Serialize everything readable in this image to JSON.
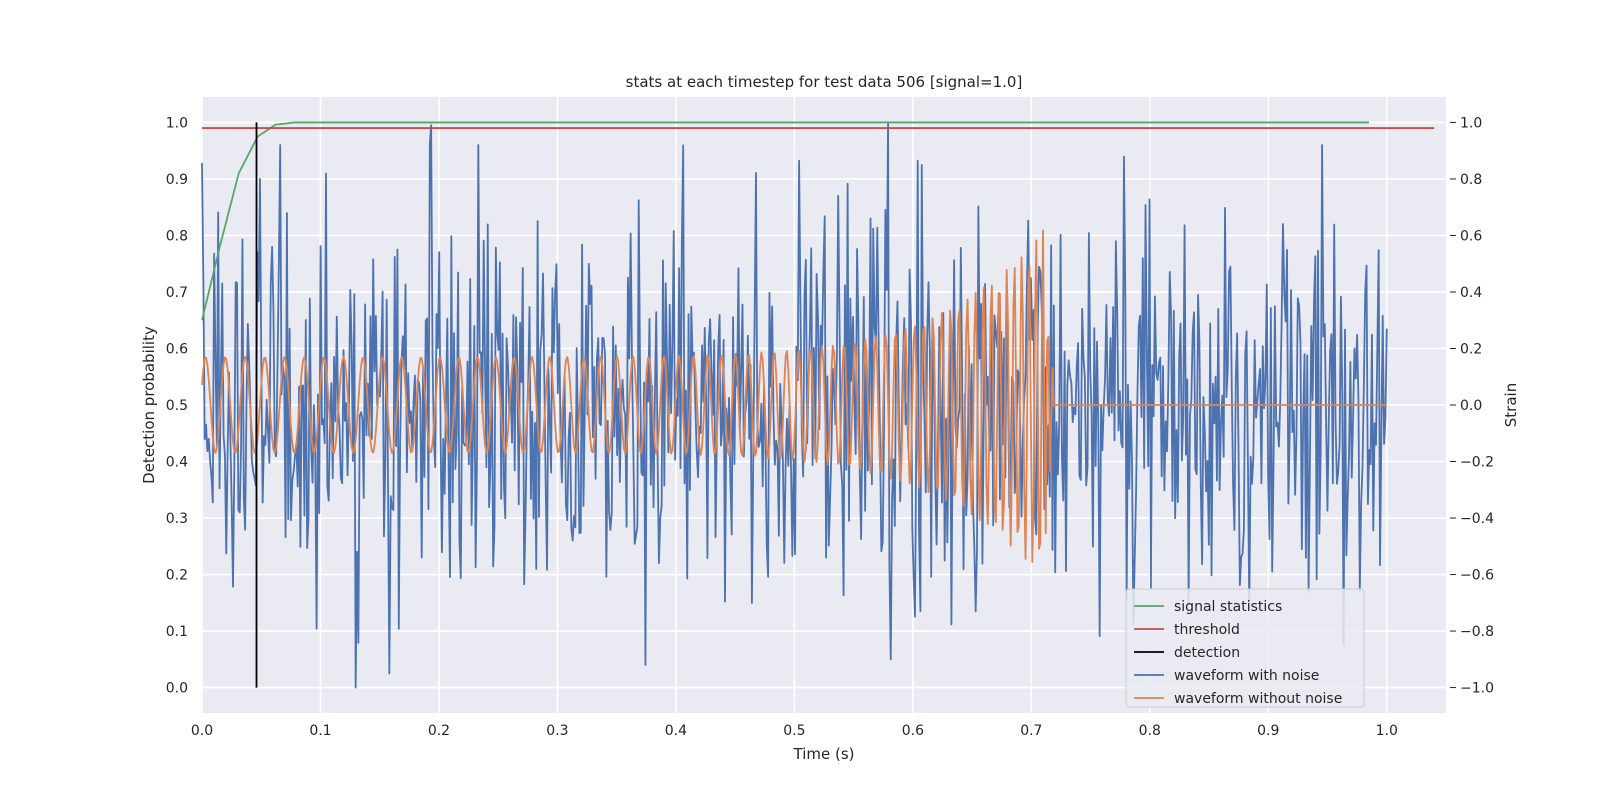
{
  "chart_data": {
    "type": "line",
    "title": "stats at each timestep for test data 506 [signal=1.0]",
    "xlabel": "Time (s)",
    "ylabel": "Detection probability",
    "y2label": "Strain",
    "xlim": [
      0.0,
      1.05
    ],
    "ylim": [
      -0.045,
      1.045
    ],
    "y2lim": [
      -1.09,
      1.09
    ],
    "xticks": [
      "0.0",
      "0.1",
      "0.2",
      "0.3",
      "0.4",
      "0.5",
      "0.6",
      "0.7",
      "0.8",
      "0.9",
      "1.0"
    ],
    "yticks": [
      "0.0",
      "0.1",
      "0.2",
      "0.3",
      "0.4",
      "0.5",
      "0.6",
      "0.7",
      "0.8",
      "0.9",
      "1.0"
    ],
    "y2ticks": [
      "−1.0",
      "−0.8",
      "−0.6",
      "−0.4",
      "−0.2",
      "0.0",
      "0.2",
      "0.4",
      "0.6",
      "0.8",
      "1.0"
    ],
    "grid": true,
    "legend_position": "lower right",
    "background": "#eaeaf2",
    "series": [
      {
        "name": "signal statistics",
        "axis": "left",
        "color": "#55a868",
        "x": [
          0.0,
          0.015,
          0.031,
          0.047,
          0.062,
          0.078,
          0.1,
          0.2,
          0.4,
          0.6,
          0.8,
          0.985
        ],
        "y": [
          0.65,
          0.78,
          0.91,
          0.975,
          0.996,
          1.0,
          1.0,
          1.0,
          1.0,
          1.0,
          1.0,
          1.0
        ]
      },
      {
        "name": "threshold",
        "axis": "left",
        "color": "#c44e52",
        "x": [
          0.0,
          1.04
        ],
        "y": [
          0.99,
          0.99
        ]
      },
      {
        "name": "detection",
        "axis": "left",
        "color": "#000000",
        "x": [
          0.046,
          0.046
        ],
        "y": [
          0.0,
          1.0
        ]
      },
      {
        "name": "waveform with noise",
        "axis": "right",
        "color": "#4c72b0",
        "points": 880,
        "x_range": [
          0.0,
          1.0
        ],
        "y_range": [
          -1.0,
          1.0
        ],
        "peaks": [
          {
            "x": 0.193,
            "y": 0.99
          },
          {
            "x": 0.579,
            "y": 1.0
          },
          {
            "x": 0.13,
            "y": -1.0
          },
          {
            "x": 0.581,
            "y": -0.9
          },
          {
            "x": 0.049,
            "y": 0.8
          },
          {
            "x": 0.158,
            "y": -0.95
          }
        ]
      },
      {
        "name": "waveform without noise",
        "axis": "right",
        "color": "#dd8452",
        "points": 880,
        "x_range": [
          0.0,
          1.0
        ],
        "amplitude_start": 0.17,
        "amplitude_peak": 0.62,
        "merger_time": 0.71,
        "ringdown_end": 0.72
      }
    ]
  }
}
